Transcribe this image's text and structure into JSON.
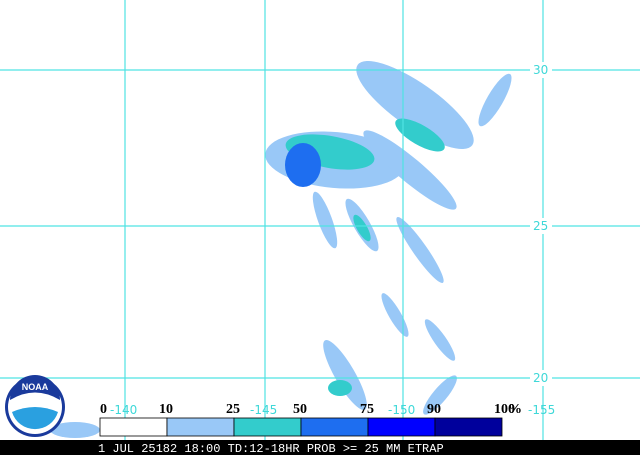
{
  "map": {
    "lat_labels": [
      30,
      25,
      20
    ],
    "lon_labels": [
      -140,
      -145,
      -150,
      -155
    ]
  },
  "legend": {
    "labels": [
      0,
      10,
      25,
      50,
      75,
      90,
      100
    ],
    "unit": "%",
    "colors": [
      "#ffffff",
      "#99c8f7",
      "#33cccc",
      "#1e6ef0",
      "#0000ff",
      "#00009c"
    ]
  },
  "caption": "1 JUL 25182 18:00 TD:12-18HR PROB >= 25 MM ETRAP",
  "logo": "NOAA"
}
